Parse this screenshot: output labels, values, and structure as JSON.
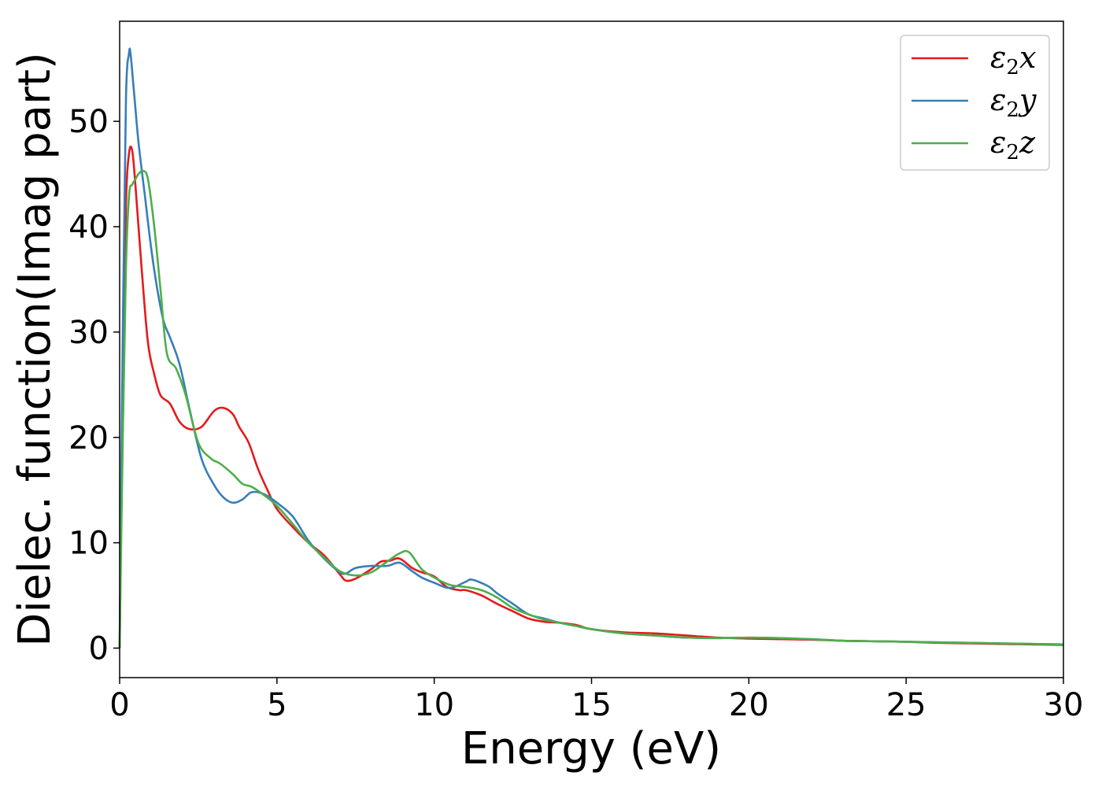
{
  "chart_data": {
    "type": "line",
    "title": "",
    "xlabel": "Energy (eV)",
    "ylabel": "Dielec. function(Imag part)",
    "xlim": [
      0,
      30
    ],
    "ylim": [
      -2.8,
      59.5
    ],
    "xticks": [
      0,
      5,
      10,
      15,
      20,
      25,
      30
    ],
    "yticks": [
      0,
      10,
      20,
      30,
      40,
      50
    ],
    "grid": false,
    "legend_position": "top-right",
    "series": [
      {
        "name": "ε₂x",
        "legend_base": "ε",
        "legend_sub": "2",
        "legend_suffix": "x",
        "color": "#e41a1c",
        "x": [
          0,
          0.1,
          0.2,
          0.3,
          0.4,
          0.5,
          0.7,
          0.9,
          1.1,
          1.3,
          1.6,
          1.9,
          2.2,
          2.6,
          3.0,
          3.3,
          3.6,
          3.8,
          4.1,
          4.4,
          4.7,
          5.0,
          5.5,
          6.0,
          6.5,
          7.0,
          7.2,
          7.5,
          8.0,
          8.3,
          8.6,
          8.9,
          9.3,
          9.6,
          10.0,
          10.4,
          10.8,
          11.0,
          11.5,
          12.0,
          12.5,
          13.0,
          13.5,
          14.0,
          14.5,
          15.0,
          16.0,
          17.0,
          18.0,
          19.0,
          20.0,
          21.0,
          22.0,
          23.0,
          24.0,
          25.0,
          26.0,
          27.0,
          28.0,
          29.0,
          30.0
        ],
        "y": [
          0,
          25,
          42,
          47,
          47.2,
          44,
          36,
          29,
          26,
          24,
          23.2,
          21.5,
          20.8,
          21,
          22.5,
          22.8,
          22.2,
          21,
          19.5,
          17,
          15,
          13.2,
          11.5,
          10,
          8.8,
          7,
          6.4,
          6.6,
          7.5,
          8.2,
          8.3,
          8.5,
          7.6,
          7.2,
          6.8,
          5.8,
          5.5,
          5.5,
          5,
          4.2,
          3.5,
          2.8,
          2.5,
          2.4,
          2.2,
          1.8,
          1.5,
          1.4,
          1.2,
          1.0,
          0.9,
          0.85,
          0.8,
          0.7,
          0.65,
          0.6,
          0.5,
          0.45,
          0.4,
          0.35,
          0.3
        ]
      },
      {
        "name": "ε₂y",
        "legend_base": "ε",
        "legend_sub": "2",
        "legend_suffix": "y",
        "color": "#377eb8",
        "x": [
          0,
          0.1,
          0.2,
          0.3,
          0.35,
          0.45,
          0.6,
          0.8,
          1.0,
          1.2,
          1.4,
          1.6,
          1.9,
          2.2,
          2.6,
          3.0,
          3.3,
          3.6,
          3.9,
          4.2,
          4.6,
          5.0,
          5.5,
          6.0,
          6.5,
          7.0,
          7.2,
          7.5,
          8.0,
          8.5,
          8.9,
          9.3,
          9.6,
          10.0,
          10.5,
          11.0,
          11.2,
          11.7,
          12.0,
          12.5,
          13.0,
          13.5,
          14.0,
          14.5,
          15.0,
          16.0,
          17.0,
          18.0,
          19.0,
          20.0,
          21.0,
          22.0,
          23.0,
          24.0,
          25.0,
          26.0,
          27.0,
          28.0,
          29.0,
          30.0
        ],
        "y": [
          0,
          30,
          52,
          56.5,
          56.3,
          53,
          48,
          43,
          38,
          34,
          31,
          29.5,
          27,
          23,
          18,
          15.5,
          14.3,
          13.8,
          14.1,
          14.8,
          14.6,
          13.8,
          12.5,
          10.2,
          8.5,
          7.2,
          7.1,
          7.6,
          7.8,
          7.8,
          8.1,
          7.3,
          6.7,
          6.2,
          5.7,
          6.3,
          6.5,
          5.9,
          5.2,
          4.2,
          3.2,
          2.8,
          2.4,
          2.1,
          1.8,
          1.4,
          1.2,
          1.0,
          0.95,
          1.0,
          0.95,
          0.85,
          0.7,
          0.65,
          0.6,
          0.55,
          0.5,
          0.45,
          0.4,
          0.35
        ]
      },
      {
        "name": "ε₂z",
        "legend_base": "ε",
        "legend_sub": "2",
        "legend_suffix": "z",
        "color": "#4daf4a",
        "x": [
          0,
          0.1,
          0.2,
          0.3,
          0.4,
          0.5,
          0.6,
          0.75,
          0.9,
          1.1,
          1.3,
          1.5,
          1.8,
          2.1,
          2.5,
          2.9,
          3.2,
          3.6,
          3.9,
          4.2,
          4.6,
          5.0,
          5.5,
          6.0,
          6.5,
          7.0,
          7.5,
          8.0,
          8.5,
          8.9,
          9.2,
          9.6,
          10.0,
          10.5,
          11.0,
          11.5,
          12.0,
          12.5,
          13.0,
          13.5,
          14.0,
          14.5,
          15.0,
          16.0,
          17.0,
          18.0,
          19.0,
          20.0,
          21.0,
          22.0,
          23.0,
          24.0,
          25.0,
          26.0,
          27.0,
          28.0,
          29.0,
          30.0
        ],
        "y": [
          0,
          20,
          36,
          43,
          44,
          44.5,
          45,
          45.3,
          44.5,
          40,
          34,
          28,
          26.5,
          24,
          19.5,
          18,
          17.5,
          16.5,
          15.6,
          15.3,
          14.5,
          13.5,
          11.8,
          10,
          8.6,
          7.3,
          6.9,
          7.2,
          8.2,
          9.0,
          9.1,
          7.5,
          6.7,
          6.0,
          5.8,
          5.5,
          4.8,
          3.8,
          3.2,
          2.7,
          2.4,
          2.1,
          1.8,
          1.4,
          1.2,
          1.0,
          0.95,
          1.0,
          0.95,
          0.85,
          0.7,
          0.65,
          0.6,
          0.55,
          0.5,
          0.45,
          0.4,
          0.35
        ]
      }
    ]
  }
}
